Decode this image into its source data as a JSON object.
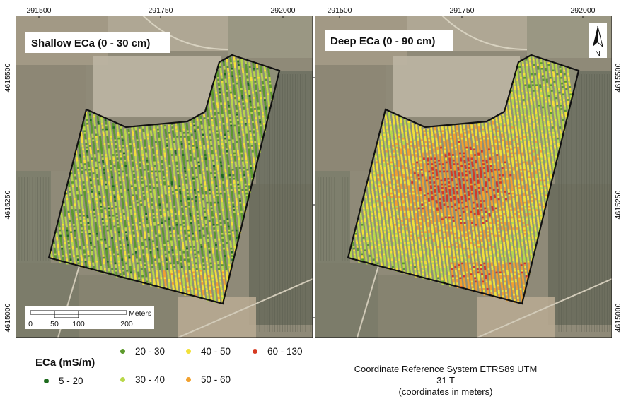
{
  "panels": [
    {
      "title": "Shallow ECa (0 - 30 cm)",
      "layer": "shallow"
    },
    {
      "title": "Deep ECa (0 - 90 cm)",
      "layer": "deep"
    }
  ],
  "axis_ticks": {
    "x": [
      "291500",
      "291750",
      "292000"
    ],
    "y": [
      "4615500",
      "4615250",
      "4615000"
    ]
  },
  "scale_bar": {
    "unit": "Meters",
    "labels": [
      "0",
      "50",
      "100",
      "200"
    ]
  },
  "north_arrow": {
    "label": "N",
    "icon": "north-arrow-icon"
  },
  "legend": {
    "title": "ECa (mS/m)",
    "classes": [
      {
        "label": "5 - 20",
        "color": "#1e6b1e"
      },
      {
        "label": "20 - 30",
        "color": "#5c9a2c"
      },
      {
        "label": "30 - 40",
        "color": "#b9d84a"
      },
      {
        "label": "40 - 50",
        "color": "#f2e13a"
      },
      {
        "label": "50 - 60",
        "color": "#f2a12e"
      },
      {
        "label": "60 - 130",
        "color": "#d63a22"
      }
    ]
  },
  "crs": {
    "line1": "Coordinate Reference System ETRS89 UTM 31 T",
    "line2": "(coordinates in meters)"
  }
}
